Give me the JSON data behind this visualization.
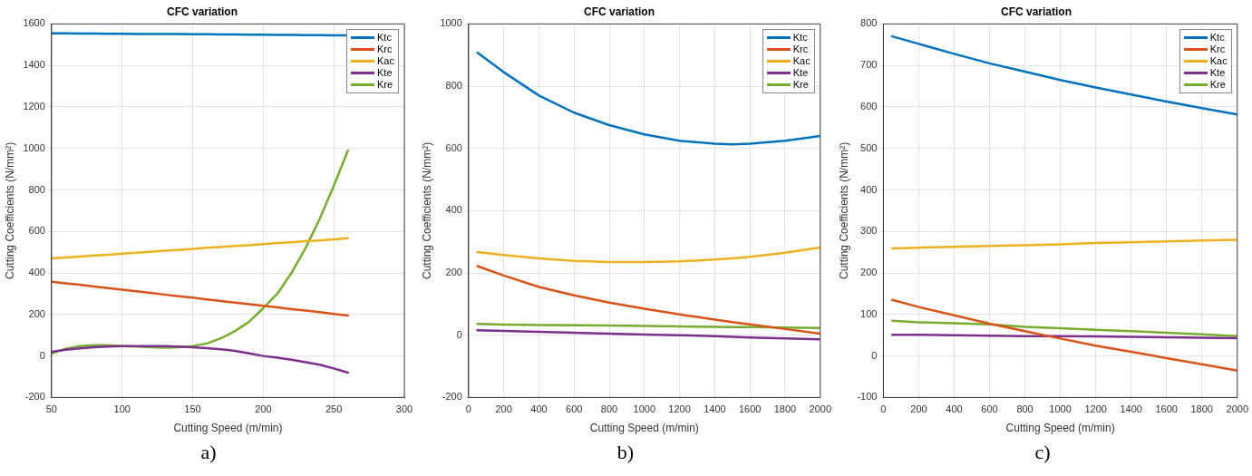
{
  "chart_data": [
    {
      "type": "line",
      "title": "CFC variation",
      "xlabel": "Cutting Speed (m/min)",
      "ylabel": "Cutting Coefficients (N/mm²)",
      "annotations": [
        "a)"
      ],
      "x": [
        50,
        60,
        70,
        80,
        90,
        100,
        110,
        120,
        130,
        140,
        150,
        160,
        170,
        180,
        190,
        200,
        210,
        220,
        230,
        240,
        250,
        260
      ],
      "series": [
        {
          "name": "Ktc",
          "color": "#0072bd",
          "values": [
            1555,
            1555,
            1554,
            1554,
            1553,
            1553,
            1552,
            1552,
            1551,
            1551,
            1550,
            1550,
            1549,
            1549,
            1548,
            1548,
            1547,
            1547,
            1546,
            1546,
            1545,
            1545
          ]
        },
        {
          "name": "Krc",
          "color": "#d95319",
          "values": [
            358,
            350,
            343,
            335,
            327,
            319,
            312,
            304,
            296,
            288,
            281,
            273,
            265,
            257,
            250,
            242,
            234,
            226,
            219,
            211,
            203,
            195
          ]
        },
        {
          "name": "Kac",
          "color": "#edb120",
          "values": [
            470,
            475,
            479,
            484,
            488,
            493,
            498,
            502,
            507,
            511,
            516,
            521,
            525,
            530,
            534,
            539,
            544,
            548,
            553,
            557,
            562,
            567
          ]
        },
        {
          "name": "Kte",
          "color": "#7e2f8e",
          "values": [
            20,
            30,
            37,
            42,
            45,
            47,
            48,
            48,
            47,
            45,
            42,
            38,
            32,
            25,
            13,
            0,
            -8,
            -18,
            -30,
            -42,
            -60,
            -80
          ]
        },
        {
          "name": "Kre",
          "color": "#77ac30",
          "values": [
            12,
            35,
            48,
            52,
            52,
            48,
            45,
            42,
            40,
            42,
            48,
            60,
            85,
            120,
            165,
            230,
            300,
            400,
            520,
            660,
            820,
            990
          ]
        }
      ],
      "xlim": [
        50,
        300
      ],
      "xticks": [
        50,
        100,
        150,
        200,
        250,
        300
      ],
      "ylim": [
        -200,
        1600
      ],
      "yticks": [
        -200,
        0,
        200,
        400,
        600,
        800,
        1000,
        1200,
        1400,
        1600
      ],
      "grid": true,
      "legend": "top right",
      "marker": "none",
      "line_style": "solid"
    },
    {
      "type": "line",
      "title": "CFC variation",
      "xlabel": "Cutting Speed (m/min)",
      "ylabel": "Cutting Coefficients (N/mm²)",
      "annotations": [
        "b)"
      ],
      "x": [
        50,
        200,
        400,
        600,
        800,
        1000,
        1200,
        1400,
        1500,
        1600,
        1800,
        2000
      ],
      "series": [
        {
          "name": "Ktc",
          "color": "#0072bd",
          "values": [
            908,
            845,
            770,
            715,
            675,
            645,
            625,
            615,
            613,
            615,
            625,
            640
          ]
        },
        {
          "name": "Krc",
          "color": "#d95319",
          "values": [
            222,
            192,
            155,
            128,
            105,
            85,
            67,
            50,
            42,
            35,
            20,
            5
          ]
        },
        {
          "name": "Kac",
          "color": "#edb120",
          "values": [
            267,
            258,
            247,
            239,
            235,
            235,
            237,
            243,
            247,
            252,
            265,
            282
          ]
        },
        {
          "name": "Kte",
          "color": "#7e2f8e",
          "values": [
            16,
            14,
            11,
            8,
            5,
            2,
            0,
            -3,
            -5,
            -7,
            -10,
            -13
          ]
        },
        {
          "name": "Kre",
          "color": "#77ac30",
          "values": [
            36,
            34,
            33,
            32,
            31,
            30,
            28,
            27,
            26,
            26,
            25,
            23
          ]
        }
      ],
      "xlim": [
        0,
        2000
      ],
      "xticks": [
        0,
        200,
        400,
        600,
        800,
        1000,
        1200,
        1400,
        1600,
        1800,
        2000
      ],
      "ylim": [
        -200,
        1000
      ],
      "yticks": [
        -200,
        0,
        200,
        400,
        600,
        800,
        1000
      ],
      "grid": true,
      "legend": "top right",
      "marker": "none",
      "line_style": "solid"
    },
    {
      "type": "line",
      "title": "CFC variation",
      "xlabel": "Cutting Speed (m/min)",
      "ylabel": "Cutting Coefficients (N/mm²)",
      "annotations": [
        "c)"
      ],
      "x": [
        50,
        200,
        400,
        600,
        800,
        1000,
        1200,
        1400,
        1600,
        1800,
        2000
      ],
      "series": [
        {
          "name": "Ktc",
          "color": "#0072bd",
          "values": [
            770,
            752,
            728,
            705,
            685,
            665,
            647,
            630,
            613,
            597,
            582
          ]
        },
        {
          "name": "Krc",
          "color": "#d95319",
          "values": [
            135,
            118,
            98,
            78,
            60,
            42,
            25,
            10,
            -5,
            -20,
            -35
          ]
        },
        {
          "name": "Kac",
          "color": "#edb120",
          "values": [
            259,
            261,
            263,
            265,
            267,
            269,
            272,
            274,
            276,
            278,
            280
          ]
        },
        {
          "name": "Kte",
          "color": "#7e2f8e",
          "values": [
            51,
            51,
            50,
            49,
            48,
            48,
            47,
            46,
            45,
            44,
            43
          ]
        },
        {
          "name": "Kre",
          "color": "#77ac30",
          "values": [
            85,
            81,
            79,
            76,
            70,
            67,
            63,
            60,
            56,
            52,
            48
          ]
        }
      ],
      "xlim": [
        0,
        2000
      ],
      "xticks": [
        0,
        200,
        400,
        600,
        800,
        1000,
        1200,
        1400,
        1600,
        1800,
        2000
      ],
      "ylim": [
        -100,
        800
      ],
      "yticks": [
        -100,
        0,
        100,
        200,
        300,
        400,
        500,
        600,
        700,
        800
      ],
      "grid": true,
      "legend": "top right",
      "marker": "none",
      "line_style": "solid"
    }
  ]
}
